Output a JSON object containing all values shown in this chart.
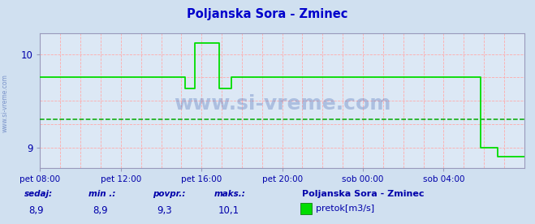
{
  "title": "Poljanska Sora - Zminec",
  "title_color": "#0000cc",
  "bg_color": "#d0e0f0",
  "plot_bg_color": "#dce8f5",
  "line_color": "#00dd00",
  "avg_line_color": "#00aa00",
  "grid_color": "#ffaaaa",
  "watermark_color": "#3355aa",
  "arrow_color": "#880000",
  "footer_color": "#0000aa",
  "x_tick_labels": [
    "pet 08:00",
    "pet 12:00",
    "pet 16:00",
    "pet 20:00",
    "sob 00:00",
    "sob 04:00"
  ],
  "x_ticks_norm": [
    0.0,
    0.1667,
    0.3333,
    0.5,
    0.6667,
    0.8333
  ],
  "ylim": [
    8.78,
    10.22
  ],
  "yticks": [
    9.0,
    10.0
  ],
  "avg_value": 9.3,
  "stat_labels": [
    "sedaj:",
    "min .:",
    "povpr.:",
    "maks.:"
  ],
  "stat_values": [
    "8,9",
    "8,9",
    "9,3",
    "10,1"
  ],
  "legend_label": "pretok[m3/s]",
  "legend_station": "Poljanska Sora - Zminec",
  "watermark_text": "www.si-vreme.com",
  "series_x": [
    0.0,
    0.3,
    0.3,
    0.32,
    0.32,
    0.37,
    0.37,
    0.395,
    0.395,
    0.42,
    0.42,
    0.5,
    0.5,
    0.91,
    0.91,
    0.945,
    0.945,
    1.0
  ],
  "series_y": [
    9.75,
    9.75,
    9.63,
    9.63,
    10.12,
    10.12,
    9.63,
    9.63,
    9.75,
    9.75,
    9.75,
    9.75,
    9.75,
    9.75,
    9.0,
    9.0,
    8.9,
    8.9
  ],
  "num_xgrid": 24,
  "num_ygrid_step": 0.25
}
